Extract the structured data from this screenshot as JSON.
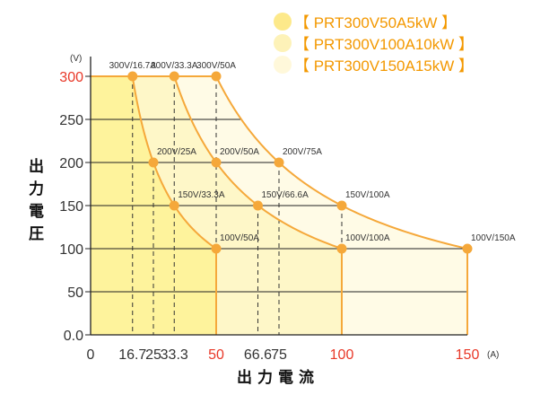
{
  "chart_data": {
    "type": "line",
    "xlabel": "出力電流",
    "ylabel": "出力電圧",
    "x_unit": "(A)",
    "y_unit": "(V)",
    "xlim": [
      0,
      150
    ],
    "ylim": [
      0,
      300
    ],
    "x_ticks": [
      "0",
      "16.7",
      "25",
      "33.3",
      "50",
      "66.6",
      "75",
      "100",
      "150"
    ],
    "x_tick_values": [
      0,
      16.7,
      25,
      33.3,
      50,
      66.6,
      75,
      100,
      150
    ],
    "x_ticks_highlight": [
      "50",
      "100",
      "150"
    ],
    "y_ticks": [
      "0.0",
      "50",
      "100",
      "150",
      "200",
      "250",
      "300"
    ],
    "y_tick_values": [
      0,
      50,
      100,
      150,
      200,
      250,
      300
    ],
    "y_ticks_highlight": [
      "300"
    ],
    "colors": {
      "curve": "#f5a83a",
      "highlight_tick": "#e83828",
      "legend_text": "#f39800",
      "fill_5kw": "#fef39c",
      "fill_10kw": "#fef7c8",
      "fill_15kw": "#fffbe6"
    },
    "legend_placement": "top-right",
    "series": [
      {
        "name": "【 PRT300V50A5kW 】",
        "power_w": 5000,
        "max_v": 300,
        "max_a": 50,
        "points": [
          {
            "v": 300,
            "a": 16.7,
            "label": "300V/16.7A"
          },
          {
            "v": 200,
            "a": 25,
            "label": "200V/25A"
          },
          {
            "v": 150,
            "a": 33.3,
            "label": "150V/33.3A"
          },
          {
            "v": 100,
            "a": 50,
            "label": "100V/50A"
          }
        ]
      },
      {
        "name": "【 PRT300V100A10kW 】",
        "power_w": 10000,
        "max_v": 300,
        "max_a": 100,
        "points": [
          {
            "v": 300,
            "a": 33.3,
            "label": "300V/33.3A"
          },
          {
            "v": 200,
            "a": 50,
            "label": "200V/50A"
          },
          {
            "v": 150,
            "a": 66.6,
            "label": "150V/66.6A"
          },
          {
            "v": 100,
            "a": 100,
            "label": "100V/100A"
          }
        ]
      },
      {
        "name": "【 PRT300V150A15kW 】",
        "power_w": 15000,
        "max_v": 300,
        "max_a": 150,
        "points": [
          {
            "v": 300,
            "a": 50,
            "label": "300V/50A"
          },
          {
            "v": 200,
            "a": 75,
            "label": "200V/75A"
          },
          {
            "v": 150,
            "a": 100,
            "label": "150V/100A"
          },
          {
            "v": 100,
            "a": 150,
            "label": "100V/150A"
          }
        ]
      }
    ]
  }
}
